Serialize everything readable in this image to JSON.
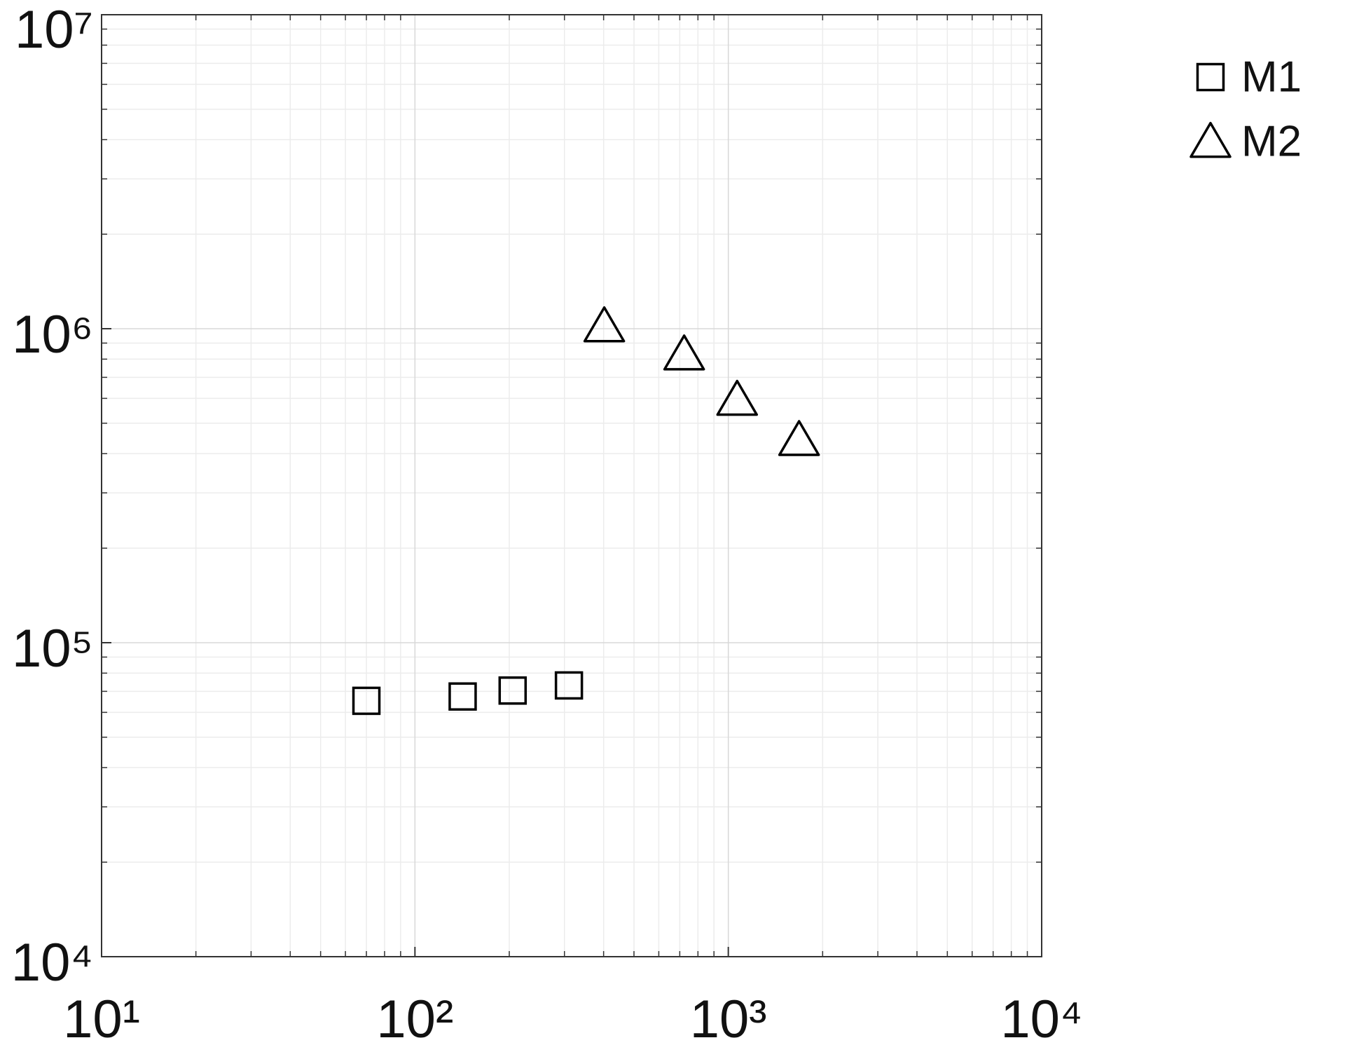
{
  "chart_data": {
    "type": "scatter",
    "xscale": "log",
    "yscale": "log",
    "xlim": [
      10,
      10000
    ],
    "xticks": [
      {
        "value": 10,
        "label": "10¹"
      },
      {
        "value": 100,
        "label": "10²"
      },
      {
        "value": 1000,
        "label": "10³"
      },
      {
        "value": 10000,
        "label": "10⁴"
      }
    ],
    "ylim": [
      10000,
      10000000
    ],
    "yticks": [
      {
        "value": 10000,
        "label": "10⁴"
      },
      {
        "value": 100000,
        "label": "10⁵"
      },
      {
        "value": 1000000,
        "label": "10⁶"
      },
      {
        "value": 10000000,
        "label": "10⁷"
      }
    ],
    "grid": true,
    "minor_grid": true,
    "legend": "outside-top-right",
    "series": [
      {
        "name": "M1",
        "marker": "square",
        "color": "#000000",
        "x": [
          70,
          142,
          205,
          310
        ],
        "values": [
          65300,
          67400,
          70400,
          73100
        ]
      },
      {
        "name": "M2",
        "marker": "triangle",
        "color": "#000000",
        "x": [
          402,
          723,
          1067,
          1682
        ],
        "values": [
          1020000,
          830000,
          595000,
          443000
        ]
      }
    ]
  }
}
